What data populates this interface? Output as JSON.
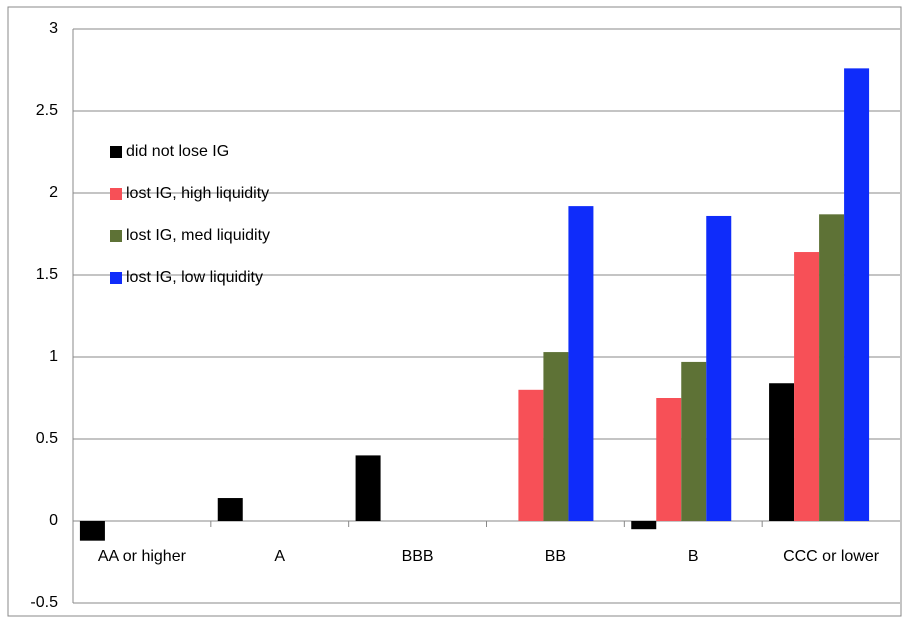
{
  "chart_data": {
    "type": "bar",
    "categories": [
      "AA or higher",
      "A",
      "BBB",
      "BB",
      "B",
      "CCC or lower"
    ],
    "series": [
      {
        "name": "did not lose IG",
        "color": "#000000",
        "values": [
          -0.12,
          0.14,
          0.4,
          null,
          -0.05,
          0.84
        ]
      },
      {
        "name": "lost IG, high liquidity",
        "color": "#f75057",
        "values": [
          null,
          null,
          null,
          0.8,
          0.75,
          1.64
        ]
      },
      {
        "name": "lost IG, med liquidity",
        "color": "#5e7236",
        "values": [
          null,
          null,
          null,
          1.03,
          0.97,
          1.87
        ]
      },
      {
        "name": "lost IG, low liquidity",
        "color": "#0f2cfa",
        "values": [
          null,
          null,
          null,
          1.92,
          1.86,
          2.76
        ]
      }
    ],
    "ylim": [
      -0.5,
      3
    ],
    "yticks": [
      -0.5,
      0,
      0.5,
      1,
      1.5,
      2,
      2.5,
      3
    ],
    "grid": true,
    "legend": "upper-left"
  }
}
